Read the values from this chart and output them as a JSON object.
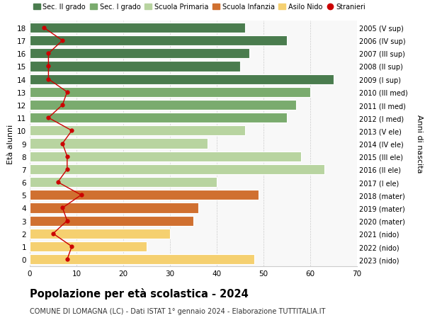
{
  "ages": [
    18,
    17,
    16,
    15,
    14,
    13,
    12,
    11,
    10,
    9,
    8,
    7,
    6,
    5,
    4,
    3,
    2,
    1,
    0
  ],
  "bar_values": [
    46,
    55,
    47,
    45,
    65,
    60,
    57,
    55,
    46,
    38,
    58,
    63,
    40,
    49,
    36,
    35,
    30,
    25,
    48
  ],
  "stranieri": [
    3,
    7,
    4,
    4,
    4,
    8,
    7,
    4,
    9,
    7,
    8,
    8,
    6,
    11,
    7,
    8,
    5,
    9,
    8
  ],
  "right_labels": [
    "2005 (V sup)",
    "2006 (IV sup)",
    "2007 (III sup)",
    "2008 (II sup)",
    "2009 (I sup)",
    "2010 (III med)",
    "2011 (II med)",
    "2012 (I med)",
    "2013 (V ele)",
    "2014 (IV ele)",
    "2015 (III ele)",
    "2016 (II ele)",
    "2017 (I ele)",
    "2018 (mater)",
    "2019 (mater)",
    "2020 (mater)",
    "2021 (nido)",
    "2022 (nido)",
    "2023 (nido)"
  ],
  "bar_colors": [
    "#4a7c4e",
    "#4a7c4e",
    "#4a7c4e",
    "#4a7c4e",
    "#4a7c4e",
    "#7aab6e",
    "#7aab6e",
    "#7aab6e",
    "#b8d4a0",
    "#b8d4a0",
    "#b8d4a0",
    "#b8d4a0",
    "#b8d4a0",
    "#d07030",
    "#d07030",
    "#d07030",
    "#f5d070",
    "#f5d070",
    "#f5d070"
  ],
  "legend_items": [
    {
      "label": "Sec. II grado",
      "color": "#4a7c4e",
      "type": "patch"
    },
    {
      "label": "Sec. I grado",
      "color": "#7aab6e",
      "type": "patch"
    },
    {
      "label": "Scuola Primaria",
      "color": "#b8d4a0",
      "type": "patch"
    },
    {
      "label": "Scuola Infanzia",
      "color": "#d07030",
      "type": "patch"
    },
    {
      "label": "Asilo Nido",
      "color": "#f5d070",
      "type": "patch"
    },
    {
      "label": "Stranieri",
      "color": "#cc0000",
      "type": "dot"
    }
  ],
  "title": "Popolazione per età scolastica - 2024",
  "subtitle": "COMUNE DI LOMAGNA (LC) - Dati ISTAT 1° gennaio 2024 - Elaborazione TUTTITALIA.IT",
  "ylabel_left": "Età alunni",
  "ylabel_right": "Anni di nascita",
  "xlim": [
    0,
    70
  ],
  "xticks": [
    0,
    10,
    20,
    30,
    40,
    50,
    60,
    70
  ],
  "ylim": [
    -0.55,
    18.55
  ],
  "stranieri_color": "#cc0000",
  "grid_color": "#cccccc",
  "bg_color": "#ffffff",
  "plot_bg": "#f8f8f8"
}
